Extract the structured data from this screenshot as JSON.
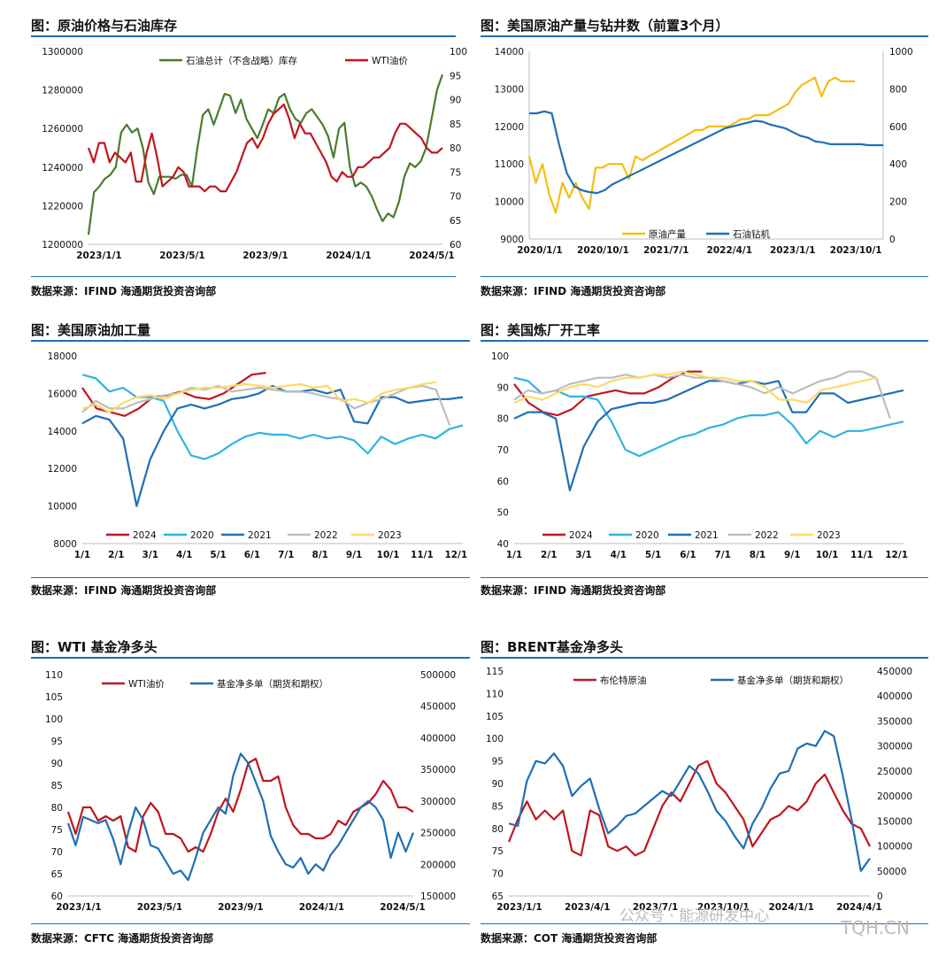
{
  "source_prefix": "数据来源：",
  "watermark": {
    "account": "公众号 · 能源研发中心",
    "site": "TQH.CN"
  },
  "panels": [
    {
      "id": "p1",
      "title": "图：原油价格与石油库存",
      "source": "数据来源：IFIND   海通期货投资咨询部"
    },
    {
      "id": "p2",
      "title": "图：美国原油产量与钻井数（前置3个月）",
      "source": "数据来源：IFIND   海通期货投资咨询部"
    },
    {
      "id": "p3",
      "title": "图：美国原油加工量",
      "source": "数据来源：IFIND   海通期货投资咨询部"
    },
    {
      "id": "p4",
      "title": "图：美国炼厂开工率",
      "source": "数据来源：IFIND   海通期货投资咨询部"
    },
    {
      "id": "p5",
      "title": "图：WTI 基金净多头",
      "source": "数据来源：CFTC   海通期货投资咨询部"
    },
    {
      "id": "p6",
      "title": "图：BRENT基金净多头",
      "source": "数据来源：COT   海通期货投资咨询部"
    }
  ],
  "chart_data": [
    {
      "type": "line",
      "title": "图：原油价格与石油库存",
      "x_ticks": [
        "2023/1/1",
        "2023/5/1",
        "2023/9/1",
        "2024/1/1",
        "2024/5/1"
      ],
      "left_axis": {
        "ylim": [
          1200000,
          1300000
        ],
        "ticks": [
          "1300000",
          "1280000",
          "1260000",
          "1240000",
          "1220000",
          "1200000"
        ]
      },
      "right_axis": {
        "ylim": [
          60,
          100
        ],
        "ticks": [
          "100",
          "95",
          "90",
          "85",
          "80",
          "75",
          "70",
          "65",
          "60"
        ]
      },
      "legend_position": "top",
      "series": [
        {
          "name": "石油总计（不含战略）库存",
          "axis": "left",
          "color": "#4a7c2f",
          "values": [
            1205000,
            1227000,
            1230000,
            1234000,
            1236000,
            1240000,
            1258000,
            1262000,
            1258000,
            1260000,
            1250000,
            1232000,
            1226000,
            1235000,
            1235000,
            1235000,
            1234000,
            1236000,
            1236000,
            1230000,
            1250000,
            1267000,
            1270000,
            1262000,
            1270000,
            1278000,
            1277000,
            1268000,
            1275000,
            1265000,
            1260000,
            1255000,
            1262000,
            1270000,
            1268000,
            1276000,
            1278000,
            1270000,
            1265000,
            1263000,
            1268000,
            1270000,
            1266000,
            1262000,
            1256000,
            1245000,
            1260000,
            1263000,
            1240000,
            1230000,
            1232000,
            1230000,
            1225000,
            1218000,
            1212000,
            1216000,
            1214000,
            1222000,
            1235000,
            1242000,
            1240000,
            1243000,
            1250000,
            1265000,
            1280000,
            1288000
          ]
        },
        {
          "name": "WTI油价",
          "axis": "right",
          "color": "#c0161f",
          "values": [
            80,
            77,
            81,
            81,
            77,
            79,
            78,
            77,
            79,
            73,
            73,
            79,
            83,
            78,
            72,
            73,
            74,
            76,
            75,
            72,
            72,
            72,
            71,
            72,
            72,
            71,
            71,
            73,
            75,
            78,
            81,
            82,
            80,
            82,
            85,
            87,
            88,
            89,
            86,
            82,
            85,
            83,
            83,
            81,
            79,
            77,
            74,
            73,
            75,
            74,
            74,
            76,
            76,
            77,
            78,
            78,
            79,
            80,
            83,
            85,
            85,
            84,
            83,
            82,
            80,
            79,
            79,
            80
          ]
        }
      ]
    },
    {
      "type": "line",
      "title": "图：美国原油产量与钻井数（前置3个月）",
      "x_ticks": [
        "2020/1/1",
        "2020/10/1",
        "2021/7/1",
        "2022/4/1",
        "2023/1/1",
        "2023/10/1"
      ],
      "left_axis": {
        "ylim": [
          9000,
          14000
        ],
        "ticks": [
          "14000",
          "13000",
          "12000",
          "11000",
          "10000",
          "9000"
        ]
      },
      "right_axis": {
        "ylim": [
          0,
          1000
        ],
        "ticks": [
          "1000",
          "800",
          "600",
          "400",
          "200",
          "0"
        ]
      },
      "legend_position": "bottom",
      "series": [
        {
          "name": "原油产量",
          "axis": "left",
          "color": "#f5bd12",
          "values": [
            11200,
            10500,
            11000,
            10200,
            9700,
            10500,
            10100,
            10500,
            10100,
            9800,
            10900,
            10900,
            11000,
            11000,
            11000,
            10600,
            11200,
            11100,
            11200,
            11300,
            11400,
            11500,
            11600,
            11700,
            11800,
            11900,
            11900,
            12000,
            12000,
            12000,
            12000,
            12100,
            12200,
            12200,
            12300,
            12300,
            12300,
            12400,
            12500,
            12600,
            12900,
            13100,
            13200,
            13300,
            12800,
            13200,
            13300,
            13200,
            13200,
            13200
          ]
        },
        {
          "name": "石油钻机",
          "axis": "right",
          "color": "#1f6fb5",
          "values": [
            670,
            670,
            680,
            670,
            500,
            350,
            280,
            260,
            250,
            245,
            260,
            290,
            310,
            330,
            350,
            370,
            390,
            410,
            430,
            450,
            470,
            490,
            510,
            530,
            550,
            570,
            590,
            600,
            610,
            620,
            630,
            625,
            610,
            600,
            590,
            570,
            550,
            540,
            520,
            515,
            505,
            505,
            505,
            505,
            505,
            500,
            500,
            500
          ]
        }
      ]
    },
    {
      "type": "line",
      "title": "图：美国原油加工量",
      "x_ticks": [
        "1/1",
        "2/1",
        "3/1",
        "4/1",
        "5/1",
        "6/1",
        "7/1",
        "8/1",
        "9/1",
        "10/1",
        "11/1",
        "12/1"
      ],
      "ylim": [
        8000,
        18000
      ],
      "y_ticks": [
        "18000",
        "16000",
        "14000",
        "12000",
        "10000",
        "8000"
      ],
      "legend_position": "bottom",
      "series": [
        {
          "name": "2024",
          "color": "#c0161f",
          "values": [
            16300,
            15200,
            15000,
            14800,
            15200,
            15800,
            15900,
            16100,
            15800,
            15700,
            16000,
            16500,
            17000,
            17100
          ]
        },
        {
          "name": "2020",
          "color": "#2fb4e0",
          "values": [
            17000,
            16800,
            16100,
            16300,
            15800,
            15800,
            15600,
            14000,
            12700,
            12500,
            12800,
            13300,
            13700,
            13900,
            13800,
            13800,
            13600,
            13800,
            13600,
            13700,
            13500,
            12800,
            13700,
            13300,
            13600,
            13800,
            13600,
            14100,
            14300
          ]
        },
        {
          "name": "2021",
          "color": "#1f6fb5",
          "values": [
            14400,
            14800,
            14600,
            13600,
            10000,
            12500,
            14000,
            15200,
            15400,
            15200,
            15400,
            15700,
            15800,
            16000,
            16400,
            16100,
            16100,
            16200,
            16000,
            16200,
            14500,
            14400,
            15800,
            15800,
            15500,
            15600,
            15700,
            15700,
            15800
          ]
        },
        {
          "name": "2022",
          "color": "#bdbdbd",
          "values": [
            15000,
            15600,
            15200,
            15200,
            15500,
            15700,
            15900,
            16000,
            16300,
            16200,
            16400,
            16100,
            16200,
            16300,
            16200,
            16100,
            16100,
            16000,
            15800,
            15700,
            15200,
            15500,
            15700,
            16000,
            16300,
            16400,
            16200,
            14300
          ]
        },
        {
          "name": "2023",
          "color": "#ffd966",
          "values": [
            15200,
            15400,
            15000,
            15500,
            15800,
            15900,
            15700,
            16000,
            16200,
            16300,
            16300,
            16400,
            16500,
            16400,
            16300,
            16400,
            16500,
            16300,
            16400,
            15600,
            15700,
            15500,
            16000,
            16200,
            16300,
            16500,
            16600
          ]
        }
      ]
    },
    {
      "type": "line",
      "title": "图：美国炼厂开工率",
      "x_ticks": [
        "1/1",
        "2/1",
        "3/1",
        "4/1",
        "5/1",
        "6/1",
        "7/1",
        "8/1",
        "9/1",
        "10/1",
        "11/1",
        "12/1"
      ],
      "ylim": [
        40,
        100
      ],
      "y_ticks": [
        "100",
        "90",
        "80",
        "70",
        "60",
        "50",
        "40"
      ],
      "legend_position": "bottom",
      "series": [
        {
          "name": "2024",
          "color": "#c0161f",
          "values": [
            91,
            85,
            82,
            81,
            83,
            87,
            88,
            89,
            88,
            88,
            90,
            93,
            95,
            95
          ]
        },
        {
          "name": "2020",
          "color": "#2fb4e0",
          "values": [
            93,
            92,
            88,
            89,
            87,
            87,
            86,
            79,
            70,
            68,
            70,
            72,
            74,
            75,
            77,
            78,
            80,
            81,
            81,
            82,
            78,
            72,
            76,
            74,
            76,
            76,
            77,
            78,
            79
          ]
        },
        {
          "name": "2021",
          "color": "#1f6fb5",
          "values": [
            80,
            82,
            82,
            80,
            57,
            71,
            79,
            83,
            84,
            85,
            85,
            86,
            88,
            90,
            92,
            92,
            91,
            92,
            91,
            92,
            82,
            82,
            88,
            88,
            85,
            86,
            87,
            88,
            89
          ]
        },
        {
          "name": "2022",
          "color": "#bdbdbd",
          "values": [
            86,
            89,
            88,
            89,
            91,
            92,
            93,
            93,
            94,
            93,
            94,
            93,
            94,
            93,
            93,
            92,
            91,
            90,
            88,
            90,
            88,
            90,
            92,
            93,
            95,
            95,
            93,
            80
          ]
        },
        {
          "name": "2023",
          "color": "#ffd966",
          "values": [
            85,
            87,
            86,
            88,
            90,
            91,
            90,
            92,
            93,
            93,
            94,
            94,
            95,
            94,
            93,
            93,
            92,
            92,
            90,
            86,
            86,
            85,
            89,
            90,
            91,
            92,
            93
          ]
        }
      ]
    },
    {
      "type": "line",
      "title": "图：WTI 基金净多头",
      "x_ticks": [
        "2023/1/1",
        "2023/5/1",
        "2023/9/1",
        "2024/1/1",
        "2024/5/1"
      ],
      "left_axis": {
        "ylim": [
          60,
          110
        ],
        "ticks": [
          "110",
          "105",
          "100",
          "95",
          "90",
          "85",
          "80",
          "75",
          "70",
          "65",
          "60"
        ]
      },
      "right_axis": {
        "ylim": [
          150000,
          500000
        ],
        "ticks": [
          "500000",
          "450000",
          "400000",
          "350000",
          "300000",
          "250000",
          "200000",
          "150000"
        ]
      },
      "legend_position": "top",
      "series": [
        {
          "name": "WTI油价",
          "axis": "left",
          "color": "#c0161f",
          "values": [
            79,
            74,
            80,
            80,
            77,
            78,
            77,
            78,
            71,
            70,
            78,
            81,
            79,
            74,
            74,
            73,
            70,
            71,
            70,
            74,
            79,
            82,
            79,
            84,
            90,
            91,
            86,
            86,
            87,
            80,
            76,
            74,
            74,
            73,
            73,
            74,
            77,
            76,
            79,
            80,
            81,
            83,
            86,
            84,
            80,
            80,
            79
          ]
        },
        {
          "name": "基金净多单（期货和期权）",
          "axis": "right",
          "color": "#1f6fb5",
          "values": [
            265000,
            230000,
            275000,
            270000,
            265000,
            270000,
            240000,
            200000,
            250000,
            290000,
            270000,
            230000,
            225000,
            205000,
            185000,
            190000,
            175000,
            210000,
            250000,
            270000,
            290000,
            280000,
            340000,
            375000,
            360000,
            330000,
            300000,
            245000,
            220000,
            200000,
            195000,
            210000,
            185000,
            200000,
            190000,
            215000,
            230000,
            250000,
            270000,
            290000,
            300000,
            290000,
            270000,
            210000,
            250000,
            220000,
            250000
          ]
        }
      ]
    },
    {
      "type": "line",
      "title": "图：BRENT基金净多头",
      "x_ticks": [
        "2023/1/1",
        "2023/4/1",
        "2023/7/1",
        "2023/10/1",
        "2024/1/1",
        "2024/4/1"
      ],
      "left_axis": {
        "ylim": [
          65,
          115
        ],
        "ticks": [
          "115",
          "110",
          "105",
          "100",
          "95",
          "90",
          "85",
          "80",
          "75",
          "70",
          "65"
        ]
      },
      "right_axis": {
        "ylim": [
          0,
          450000
        ],
        "ticks": [
          "450000",
          "400000",
          "350000",
          "300000",
          "250000",
          "200000",
          "150000",
          "100000",
          "50000",
          "0"
        ]
      },
      "legend_position": "top",
      "series": [
        {
          "name": "布伦特原油",
          "axis": "left",
          "color": "#c0161f",
          "values": [
            77,
            82,
            86,
            82,
            84,
            82,
            84,
            75,
            74,
            84,
            83,
            76,
            75,
            76,
            74,
            75,
            80,
            85,
            88,
            86,
            90,
            94,
            95,
            90,
            88,
            85,
            82,
            76,
            79,
            82,
            83,
            85,
            84,
            86,
            90,
            92,
            88,
            84,
            81,
            80,
            76
          ]
        },
        {
          "name": "基金净多单（期货和期权）",
          "axis": "right",
          "color": "#1f6fb5",
          "values": [
            145000,
            140000,
            230000,
            270000,
            265000,
            285000,
            260000,
            200000,
            220000,
            235000,
            175000,
            125000,
            140000,
            160000,
            165000,
            180000,
            195000,
            210000,
            200000,
            230000,
            260000,
            245000,
            210000,
            170000,
            150000,
            120000,
            95000,
            145000,
            175000,
            215000,
            245000,
            250000,
            295000,
            305000,
            300000,
            330000,
            320000,
            240000,
            150000,
            50000,
            75000
          ]
        }
      ]
    }
  ]
}
